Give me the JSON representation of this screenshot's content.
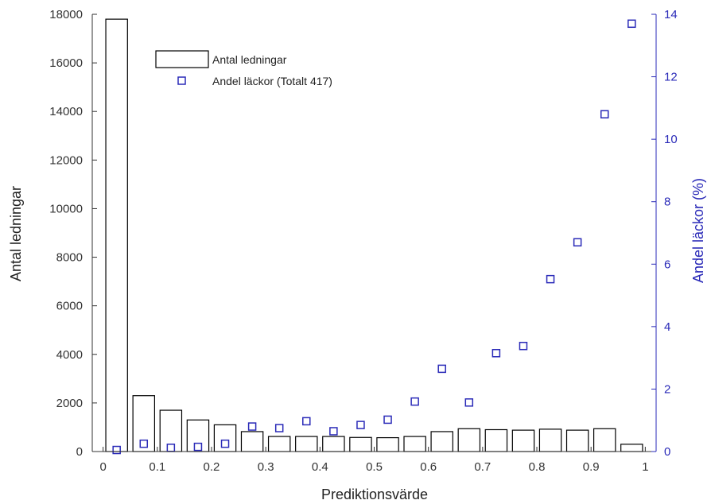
{
  "chart_data": {
    "type": "bar+scatter",
    "xlabel": "Prediktionsvärde",
    "ylabel_left": "Antal ledningar",
    "ylabel_right": "Andel läckor (%)",
    "x_range": [
      -0.02,
      1.02
    ],
    "y_left_range": [
      0,
      18000
    ],
    "y_right_range": [
      0,
      14
    ],
    "x_ticks": [
      "0",
      "0.1",
      "0.2",
      "0.3",
      "0.4",
      "0.5",
      "0.6",
      "0.7",
      "0.8",
      "0.9",
      "1"
    ],
    "y_left_ticks": [
      "0",
      "2000",
      "4000",
      "6000",
      "8000",
      "10000",
      "12000",
      "14000",
      "16000",
      "18000"
    ],
    "y_right_ticks": [
      "0",
      "2",
      "4",
      "6",
      "8",
      "10",
      "12",
      "14"
    ],
    "legend": {
      "placement": "top-left",
      "items": [
        "Antal ledningar",
        "Andel läckor (Totalt 417)"
      ]
    },
    "colors": {
      "bars": "#000000",
      "scatter": "#2a2ab8",
      "right_axis": "#2a2ab8"
    },
    "bins": [
      0.025,
      0.075,
      0.125,
      0.175,
      0.225,
      0.275,
      0.325,
      0.375,
      0.425,
      0.475,
      0.525,
      0.575,
      0.625,
      0.675,
      0.725,
      0.775,
      0.825,
      0.875,
      0.925,
      0.975
    ],
    "series": [
      {
        "name": "Antal ledningar",
        "axis": "left",
        "kind": "bar",
        "values": [
          17800,
          2300,
          1700,
          1300,
          1100,
          820,
          620,
          620,
          620,
          580,
          570,
          620,
          820,
          940,
          900,
          880,
          920,
          880,
          940,
          300
        ]
      },
      {
        "name": "Andel läckor (Totalt 417)",
        "axis": "right",
        "kind": "scatter",
        "values": [
          0.05,
          0.25,
          0.12,
          0.15,
          0.25,
          0.8,
          0.75,
          0.97,
          0.65,
          0.85,
          1.02,
          1.6,
          2.65,
          1.57,
          3.15,
          3.38,
          5.52,
          6.7,
          10.8,
          13.7
        ]
      }
    ]
  }
}
